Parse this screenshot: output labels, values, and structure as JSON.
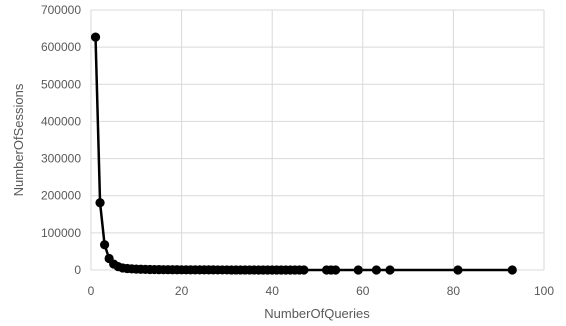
{
  "chart_data": {
    "type": "scatter",
    "xlabel": "NumberOfQueries",
    "ylabel": "NumberOfSessions",
    "xlim": [
      0,
      100
    ],
    "ylim": [
      0,
      700000
    ],
    "x_ticks": [
      0,
      20,
      40,
      60,
      80,
      100
    ],
    "y_ticks": [
      0,
      100000,
      200000,
      300000,
      400000,
      500000,
      600000,
      700000
    ],
    "x_tick_labels": [
      "0",
      "20",
      "40",
      "60",
      "80",
      "100"
    ],
    "y_tick_labels": [
      "0",
      "100000",
      "200000",
      "300000",
      "400000",
      "500000",
      "600000",
      "700000"
    ],
    "grid": true,
    "line_connected": true,
    "colors": {
      "series": "#000000",
      "grid": "#d9d9d9",
      "text": "#595959"
    },
    "series": [
      {
        "x": [
          1,
          2,
          3,
          4,
          5,
          6,
          7,
          8,
          9,
          10,
          11,
          12,
          13,
          14,
          15,
          16,
          17,
          18,
          19,
          20,
          21,
          22,
          23,
          24,
          25,
          26,
          27,
          28,
          29,
          30,
          31,
          32,
          33,
          34,
          35,
          36,
          37,
          38,
          39,
          40,
          41,
          42,
          43,
          44,
          45,
          46,
          47,
          52,
          53,
          54,
          59,
          63,
          66,
          81,
          93
        ],
        "y": [
          627000,
          181000,
          68000,
          31000,
          16000,
          9000,
          5500,
          4000,
          3000,
          2500,
          2000,
          1700,
          1400,
          1200,
          1000,
          900,
          800,
          700,
          600,
          500,
          450,
          400,
          350,
          300,
          280,
          260,
          240,
          220,
          200,
          180,
          160,
          150,
          140,
          130,
          120,
          110,
          100,
          90,
          80,
          70,
          60,
          55,
          50,
          45,
          40,
          35,
          30,
          20,
          15,
          15,
          10,
          8,
          6,
          4,
          2
        ]
      }
    ]
  }
}
